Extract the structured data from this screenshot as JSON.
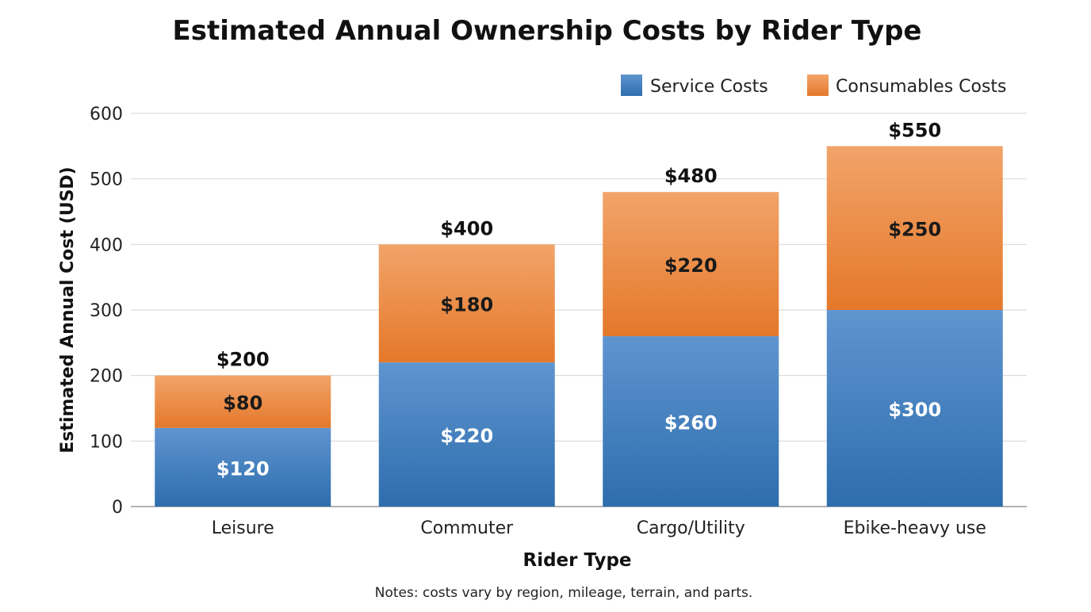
{
  "chart_data": {
    "type": "bar",
    "stacked": true,
    "title": "Estimated Annual Ownership Costs by Rider Type",
    "xlabel": "Rider Type",
    "ylabel": "Estimated Annual Cost (USD)",
    "note": "Notes: costs vary by region, mileage, terrain, and parts.",
    "categories": [
      "Leisure",
      "Commuter",
      "Cargo/Utility",
      "Ebike-heavy use"
    ],
    "series": [
      {
        "name": "Service Costs",
        "values": [
          120,
          220,
          260,
          300
        ],
        "labels": [
          "$120",
          "$220",
          "$260",
          "$300"
        ],
        "color": "#3a7bbf"
      },
      {
        "name": "Consumables Costs",
        "values": [
          80,
          180,
          220,
          250
        ],
        "labels": [
          "$80",
          "$180",
          "$220",
          "$250"
        ],
        "color": "#ea8539"
      }
    ],
    "totals": [
      "$200",
      "$400",
      "$480",
      "$550"
    ],
    "ylim": [
      0,
      600
    ],
    "yticks": [
      "0",
      "100",
      "200",
      "300",
      "400",
      "500",
      "600"
    ],
    "grid": true,
    "legend": "top-right"
  }
}
